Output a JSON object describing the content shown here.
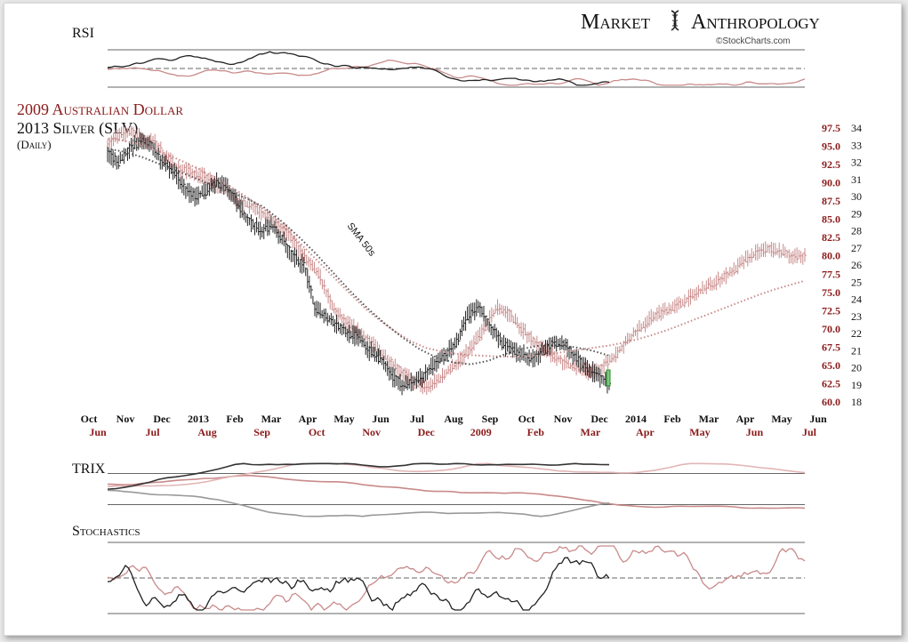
{
  "header": {
    "brand_left": "Market",
    "brand_right": "Anthropology",
    "credit": "©StockCharts.com"
  },
  "panels": {
    "rsi": "RSI",
    "trix": "TRIX",
    "stochastics": "Stochastics"
  },
  "legend": {
    "red_title": "2009 Australian Dollar",
    "black_title": "2013  Silver (SLV)",
    "period": "(Daily)"
  },
  "annotation": "SMA 50s",
  "colors": {
    "aud": "#8b1a1a",
    "aud_light": "#c98a8a",
    "slv": "#222222",
    "volume_green": "#2e8b2e",
    "rsi_fill": "#c98a8a"
  },
  "chart_data": {
    "type": "line",
    "axes": {
      "aud_ticks": [
        97.5,
        95.0,
        92.5,
        90.0,
        87.5,
        85.0,
        82.5,
        80.0,
        77.5,
        75.0,
        72.5,
        70.0,
        67.5,
        65.0,
        62.5,
        60.0
      ],
      "slv_ticks": [
        34,
        33,
        32,
        31,
        30,
        29,
        28,
        27,
        26,
        25,
        24,
        23,
        22,
        21,
        20,
        19,
        18
      ],
      "aud_range": [
        60.0,
        97.5
      ],
      "slv_range": [
        18,
        34
      ],
      "x_months_2013": [
        "Oct",
        "Nov",
        "Dec",
        "2013",
        "Feb",
        "Mar",
        "Apr",
        "May",
        "Jun",
        "Jul",
        "Aug",
        "Sep",
        "Oct",
        "Nov",
        "Dec",
        "2014",
        "Feb",
        "Mar",
        "Apr",
        "May",
        "Jun"
      ],
      "x_months_2009": [
        "Jun",
        "Jul",
        "Aug",
        "Sep",
        "Oct",
        "Nov",
        "Dec",
        "2009",
        "Feb",
        "Mar",
        "Apr",
        "May",
        "Jun",
        "Jul"
      ]
    },
    "series": [
      {
        "name": "2009 Australian Dollar",
        "units": "aud",
        "values": [
          95.5,
          96.5,
          97.0,
          96.0,
          95.5,
          93.5,
          92.0,
          91.5,
          91.0,
          90.0,
          89.0,
          87.5,
          87.0,
          86.0,
          84.5,
          83.5,
          81.5,
          79.0,
          77.0,
          73.0,
          71.0,
          70.0,
          68.5,
          67.0,
          65.5,
          64.0,
          62.5,
          62.0,
          63.0,
          64.5,
          66.0,
          68.0,
          70.5,
          73.0,
          72.0,
          70.0,
          68.5,
          67.0,
          66.0,
          65.0,
          64.5,
          64.0,
          65.0,
          66.5,
          68.5,
          70.0,
          71.5,
          72.5,
          73.0,
          74.0,
          75.0,
          76.0,
          77.0,
          78.0,
          79.5,
          80.5,
          81.0,
          80.5,
          80.0,
          80.0
        ]
      },
      {
        "name": "2013  Silver (SLV)",
        "units": "slv",
        "values": [
          32.5,
          32.0,
          32.8,
          33.2,
          33.0,
          32.0,
          31.5,
          30.5,
          30.0,
          30.3,
          30.8,
          30.5,
          29.5,
          28.5,
          28.0,
          28.3,
          27.5,
          26.5,
          26.0,
          23.5,
          23.0,
          22.5,
          22.0,
          21.8,
          21.0,
          20.5,
          19.5,
          19.0,
          19.2,
          19.5,
          20.2,
          20.8,
          21.5,
          23.0,
          23.5,
          22.5,
          21.5,
          21.0,
          20.8,
          20.5,
          21.0,
          21.5,
          21.3,
          20.5,
          20.0,
          19.5,
          19.0
        ]
      }
    ],
    "sma": [
      {
        "name": "aud-sma",
        "units": "aud",
        "values": [
          96.0,
          95.8,
          95.3,
          94.6,
          93.8,
          92.9,
          91.9,
          90.8,
          89.6,
          88.3,
          86.9,
          85.2,
          83.2,
          81.1,
          79.0,
          76.9,
          74.8,
          72.8,
          71.1,
          69.6,
          68.3,
          67.4,
          66.9,
          66.6,
          66.4,
          66.3,
          66.2,
          66.2,
          66.3,
          66.5,
          66.8,
          67.1,
          67.4,
          67.7,
          68.1,
          68.6,
          69.2,
          69.9,
          70.7,
          71.5,
          72.3,
          73.1,
          73.9,
          74.7,
          75.4,
          76.0,
          76.6
        ]
      },
      {
        "name": "slv-sma",
        "units": "slv",
        "values": [
          32.8,
          32.6,
          32.3,
          31.9,
          31.5,
          31.1,
          30.7,
          30.3,
          29.9,
          29.4,
          28.6,
          27.7,
          26.7,
          25.6,
          24.5,
          23.5,
          22.6,
          21.8,
          21.1,
          20.6,
          20.3,
          20.2,
          20.4,
          20.8,
          21.1,
          21.3,
          21.3,
          21.2,
          21.0,
          20.7
        ]
      }
    ],
    "indicators": {
      "rsi_levels": [
        70,
        50,
        30
      ],
      "stochastic_levels": [
        80,
        50,
        20
      ]
    }
  }
}
